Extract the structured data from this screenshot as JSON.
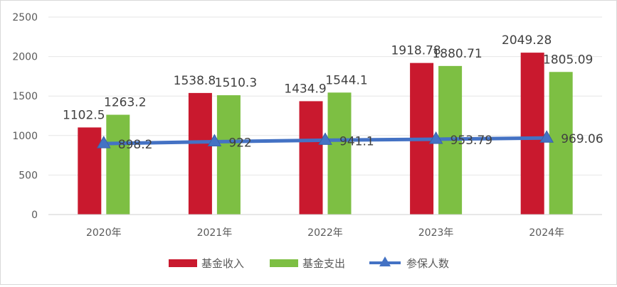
{
  "chart_data": {
    "type": "bar",
    "categories": [
      "2020年",
      "2021年",
      "2022年",
      "2023年",
      "2024年"
    ],
    "series": [
      {
        "name": "基金收入",
        "type": "bar",
        "values": [
          1102.5,
          1538.8,
          1434.9,
          1918.78,
          2049.28
        ],
        "labels": [
          "1102.5",
          "1538.8",
          "1434.9",
          "1918.78",
          "2049.28"
        ],
        "color": "#c9192e"
      },
      {
        "name": "基金支出",
        "type": "bar",
        "values": [
          1263.2,
          1510.3,
          1544.1,
          1880.71,
          1805.09
        ],
        "labels": [
          "1263.2",
          "1510.3",
          "1544.1",
          "1880.71",
          "1805.09"
        ],
        "color": "#7dbf43"
      },
      {
        "name": "参保人数",
        "type": "line",
        "values": [
          898.2,
          922,
          941.1,
          953.79,
          969.06
        ],
        "labels": [
          "898.2",
          "922",
          "941.1",
          "953.79",
          "969.06"
        ],
        "color": "#4472c4"
      }
    ],
    "yticks": [
      "0",
      "500",
      "1000",
      "1500",
      "2000",
      "2500"
    ],
    "ylim": [
      0,
      2500
    ],
    "grid": true,
    "legend": "bottom"
  }
}
